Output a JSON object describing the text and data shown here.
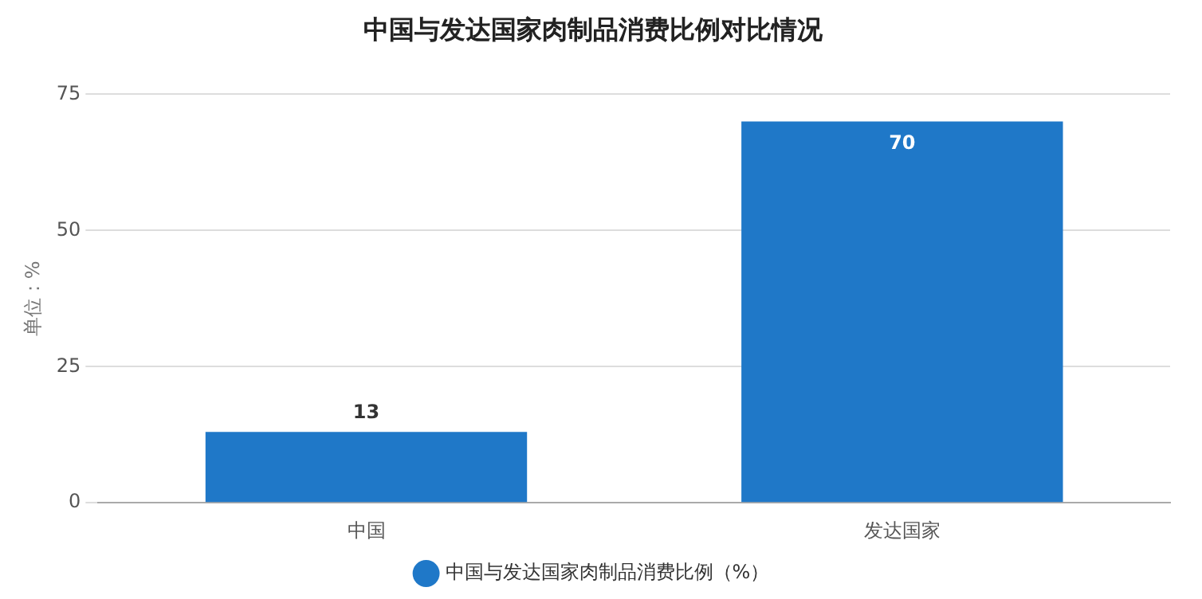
{
  "chart_data": {
    "type": "bar",
    "title": "中国与发达国家肉制品消费比例对比情况",
    "ylabel": "单位：%",
    "categories": [
      "中国",
      "发达国家"
    ],
    "series": [
      {
        "name": "中国与发达国家肉制品消费比例（%）",
        "color": "#1f78c8",
        "values": [
          13,
          70
        ]
      }
    ],
    "ylim": [
      0,
      75
    ],
    "yticks": [
      0,
      25,
      50,
      75
    ],
    "grid": "y",
    "legend": "bottom",
    "data_labels": true
  }
}
